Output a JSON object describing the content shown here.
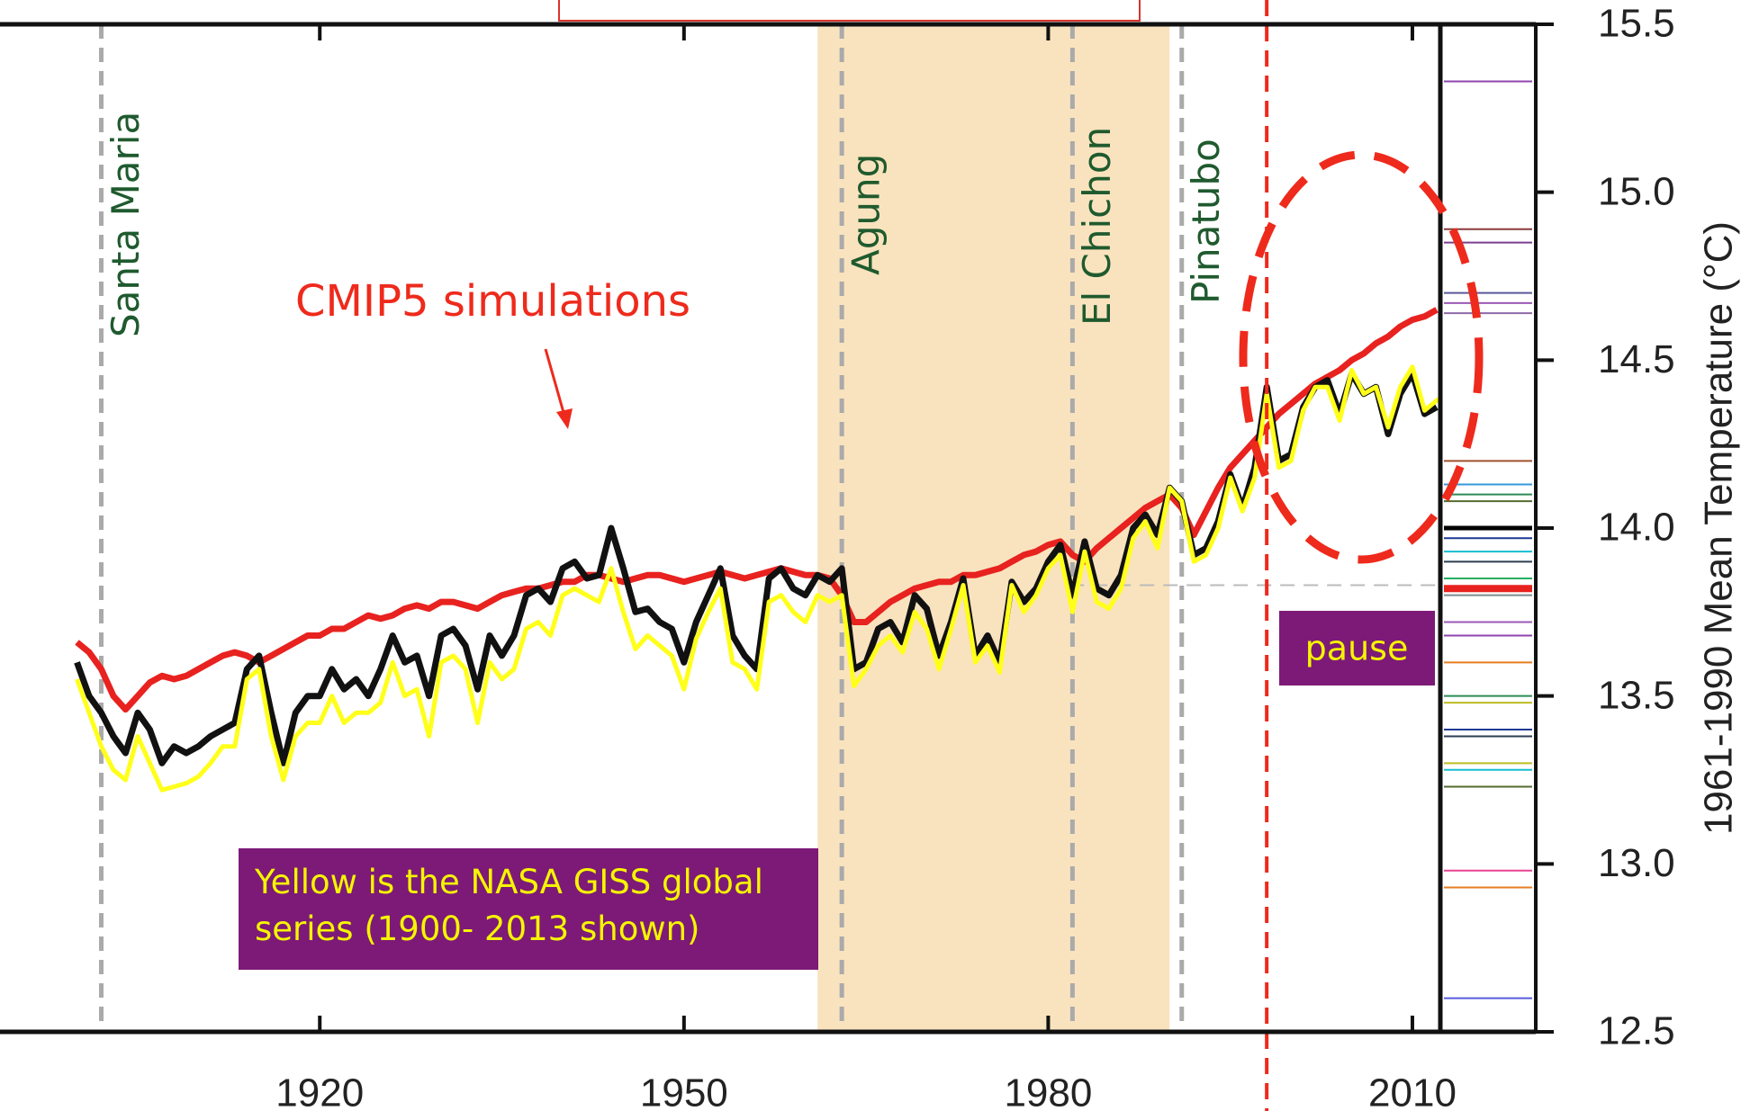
{
  "chart_data": {
    "type": "line",
    "x": [
      1900,
      1901,
      1902,
      1903,
      1904,
      1905,
      1906,
      1907,
      1908,
      1909,
      1910,
      1911,
      1912,
      1913,
      1914,
      1915,
      1916,
      1917,
      1918,
      1919,
      1920,
      1921,
      1922,
      1923,
      1924,
      1925,
      1926,
      1927,
      1928,
      1929,
      1930,
      1931,
      1932,
      1933,
      1934,
      1935,
      1936,
      1937,
      1938,
      1939,
      1940,
      1941,
      1942,
      1943,
      1944,
      1945,
      1946,
      1947,
      1948,
      1949,
      1950,
      1951,
      1952,
      1953,
      1954,
      1955,
      1956,
      1957,
      1958,
      1959,
      1960,
      1961,
      1962,
      1963,
      1964,
      1965,
      1966,
      1967,
      1968,
      1969,
      1970,
      1971,
      1972,
      1973,
      1974,
      1975,
      1976,
      1977,
      1978,
      1979,
      1980,
      1981,
      1982,
      1983,
      1984,
      1985,
      1986,
      1987,
      1988,
      1989,
      1990,
      1991,
      1992,
      1993,
      1994,
      1995,
      1996,
      1997,
      1998,
      1999,
      2000,
      2001,
      2002,
      2003,
      2004,
      2005,
      2006,
      2007,
      2008,
      2009,
      2010,
      2011,
      2012,
      2013
    ],
    "series": [
      {
        "color": "#e8221f",
        "values": [
          13.66,
          13.63,
          13.58,
          13.5,
          13.46,
          13.5,
          13.54,
          13.56,
          13.55,
          13.56,
          13.58,
          13.6,
          13.62,
          13.63,
          13.62,
          13.6,
          13.62,
          13.64,
          13.66,
          13.68,
          13.68,
          13.7,
          13.7,
          13.72,
          13.74,
          13.73,
          13.74,
          13.76,
          13.77,
          13.76,
          13.78,
          13.78,
          13.77,
          13.76,
          13.78,
          13.8,
          13.81,
          13.82,
          13.82,
          13.83,
          13.84,
          13.84,
          13.86,
          13.86,
          13.85,
          13.84,
          13.85,
          13.86,
          13.86,
          13.85,
          13.84,
          13.85,
          13.86,
          13.87,
          13.86,
          13.85,
          13.86,
          13.87,
          13.88,
          13.87,
          13.86,
          13.86,
          13.85,
          13.8,
          13.72,
          13.72,
          13.75,
          13.78,
          13.8,
          13.82,
          13.83,
          13.84,
          13.84,
          13.86,
          13.86,
          13.87,
          13.88,
          13.9,
          13.92,
          13.93,
          13.95,
          13.96,
          13.92,
          13.9,
          13.94,
          13.97,
          14.0,
          14.03,
          14.06,
          14.08,
          14.1,
          14.06,
          13.98,
          14.05,
          14.12,
          14.18,
          14.22,
          14.26,
          14.3,
          14.34,
          14.37,
          14.4,
          14.43,
          14.45,
          14.47,
          14.5,
          14.52,
          14.55,
          14.57,
          14.6,
          14.62,
          14.63,
          14.65,
          null
        ]
      },
      {
        "color": "#111111",
        "values": [
          13.6,
          13.5,
          13.45,
          13.38,
          13.33,
          13.45,
          13.4,
          13.3,
          13.35,
          13.33,
          13.35,
          13.38,
          13.4,
          13.42,
          13.58,
          13.62,
          13.45,
          13.3,
          13.45,
          13.5,
          13.5,
          13.58,
          13.52,
          13.55,
          13.5,
          13.58,
          13.68,
          13.6,
          13.62,
          13.5,
          13.68,
          13.7,
          13.65,
          13.52,
          13.68,
          13.62,
          13.68,
          13.8,
          13.82,
          13.78,
          13.88,
          13.9,
          13.85,
          13.86,
          14.0,
          13.88,
          13.75,
          13.76,
          13.72,
          13.7,
          13.6,
          13.72,
          13.8,
          13.88,
          13.68,
          13.62,
          13.58,
          13.85,
          13.88,
          13.82,
          13.8,
          13.86,
          13.84,
          13.88,
          13.58,
          13.6,
          13.7,
          13.72,
          13.66,
          13.8,
          13.76,
          13.62,
          13.72,
          13.85,
          13.62,
          13.68,
          13.6,
          13.84,
          13.78,
          13.82,
          13.9,
          13.95,
          13.8,
          13.96,
          13.82,
          13.8,
          13.86,
          14.0,
          14.04,
          13.98,
          14.12,
          14.08,
          13.92,
          13.94,
          14.02,
          14.16,
          14.06,
          14.18,
          14.42,
          14.2,
          14.22,
          14.36,
          14.42,
          14.44,
          14.34,
          14.46,
          14.4,
          14.42,
          14.28,
          14.4,
          14.46,
          14.34,
          14.36,
          null
        ]
      },
      {
        "color": "#ffff1a",
        "values": [
          13.55,
          13.45,
          13.35,
          13.28,
          13.25,
          13.38,
          13.3,
          13.22,
          13.23,
          13.24,
          13.26,
          13.3,
          13.35,
          13.35,
          13.55,
          13.58,
          13.38,
          13.25,
          13.38,
          13.42,
          13.42,
          13.5,
          13.42,
          13.45,
          13.45,
          13.48,
          13.6,
          13.5,
          13.52,
          13.38,
          13.6,
          13.62,
          13.58,
          13.42,
          13.6,
          13.55,
          13.58,
          13.7,
          13.72,
          13.68,
          13.8,
          13.82,
          13.8,
          13.78,
          13.88,
          13.75,
          13.64,
          13.68,
          13.65,
          13.62,
          13.52,
          13.67,
          13.75,
          13.82,
          13.6,
          13.58,
          13.52,
          13.78,
          13.8,
          13.75,
          13.72,
          13.8,
          13.78,
          13.8,
          13.53,
          13.58,
          13.65,
          13.68,
          13.63,
          13.75,
          13.7,
          13.58,
          13.7,
          13.83,
          13.6,
          13.65,
          13.57,
          13.83,
          13.75,
          13.8,
          13.88,
          13.92,
          13.75,
          13.93,
          13.78,
          13.76,
          13.82,
          13.97,
          14.02,
          13.94,
          14.12,
          14.08,
          13.9,
          13.92,
          14.0,
          14.15,
          14.05,
          14.15,
          14.4,
          14.18,
          14.2,
          14.35,
          14.42,
          14.42,
          14.32,
          14.47,
          14.4,
          14.42,
          14.3,
          14.42,
          14.48,
          14.35,
          14.38,
          14.4
        ]
      }
    ],
    "xlim": [
      1894.4,
      2012.3
    ],
    "xticks": [
      1920,
      1950,
      1980,
      2010
    ],
    "ylim": [
      12.5,
      15.5
    ],
    "yticks": [
      {
        "value": 12.5,
        "label": "12.5"
      },
      {
        "value": 13,
        "label": "13.0"
      },
      {
        "value": 13.5,
        "label": "13.5"
      },
      {
        "value": 14,
        "label": "14.0"
      },
      {
        "value": 14.5,
        "label": "14.5"
      },
      {
        "value": 15,
        "label": "15.0"
      },
      {
        "value": 15.5,
        "label": "15.5"
      }
    ],
    "ylabel": "1961-1990 Mean Temperature (°C)",
    "volcanoes": [
      {
        "name": "Santa Maria",
        "year": 1902
      },
      {
        "name": "Agung",
        "year": 1963
      },
      {
        "name": "El Chichon",
        "year": 1982
      },
      {
        "name": "Pinatubo",
        "year": 1991
      }
    ],
    "shaded_period": [
      1961,
      1990
    ],
    "pause_line": 1998,
    "reference_line": 13.83,
    "annotations": [
      "CMIP5 simulations",
      "Yellow is the NASA GISS global series (1900- 2013 shown)",
      "pause"
    ],
    "model_climatologies": {
      "values": [
        15.33,
        14.89,
        14.85,
        14.7,
        14.67,
        14.64,
        14.2,
        14.13,
        14.1,
        14.08,
        14.0,
        13.97,
        13.93,
        13.9,
        13.85,
        13.82,
        13.8,
        13.72,
        13.68,
        13.6,
        13.5,
        13.48,
        13.4,
        13.38,
        13.3,
        13.28,
        13.23,
        12.98,
        12.93,
        12.6
      ],
      "colors": [
        "#8e44ad",
        "#8b3a3a",
        "#7b3f8f",
        "#5a5a9a",
        "#9b59b6",
        "#8e6aa8",
        "#a0522d",
        "#3498db",
        "#2e8b57",
        "#556b2f",
        "#000000",
        "#1f3a93",
        "#17becf",
        "#2c3e50",
        "#27ae60",
        "#e8221f",
        "#7f8c8d",
        "#9b59b6",
        "#8e44ad",
        "#e67e22",
        "#2e8b57",
        "#bcbd22",
        "#1f3a93",
        "#2c3e50",
        "#bcbd22",
        "#17becf",
        "#556b2f",
        "#e84393",
        "#e67e22",
        "#5a5adc"
      ]
    }
  }
}
